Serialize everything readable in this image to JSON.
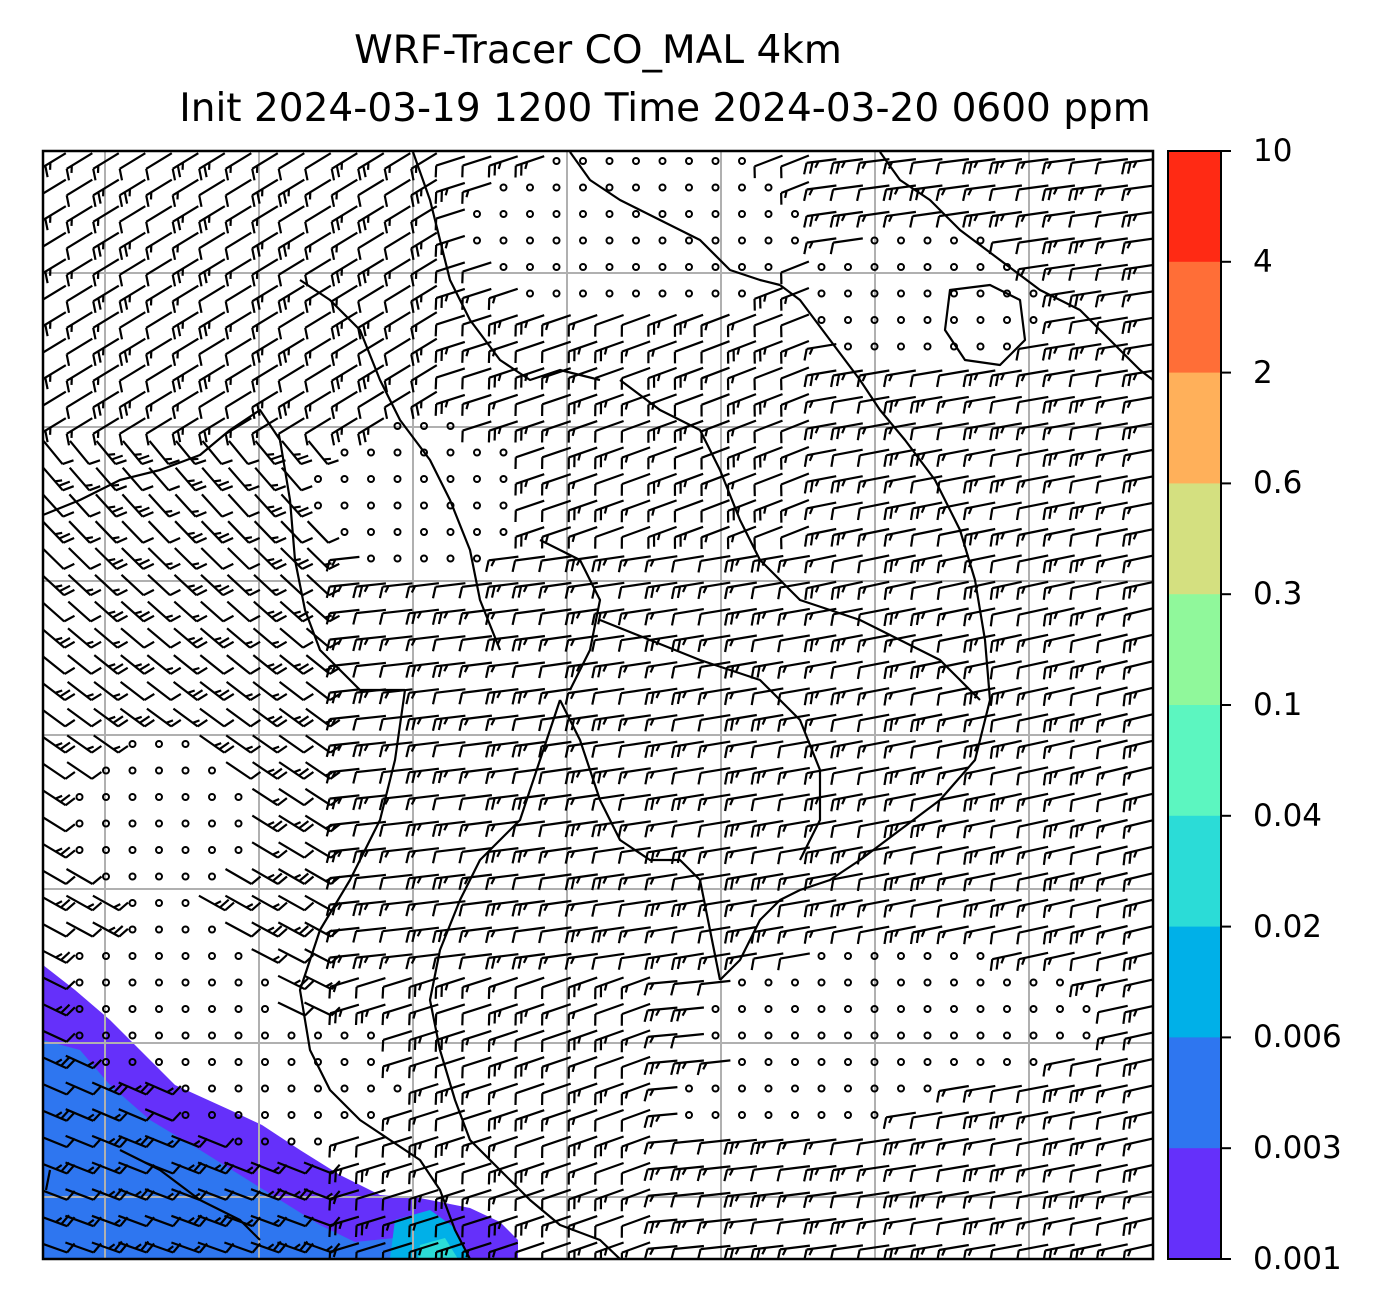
{
  "title": {
    "line1": "WRF-Tracer CO_MAL 4km",
    "line2": "Init 2024-03-19 1200 Time 2024-03-20 0600 ppm"
  },
  "colorbar": {
    "levels": [
      "10",
      "4",
      "2",
      "0.6",
      "0.3",
      "0.1",
      "0.04",
      "0.02",
      "0.006",
      "0.003",
      "0.001"
    ],
    "colors": [
      "#ff2a14",
      "#ff6e37",
      "#ffb05a",
      "#d4e080",
      "#90f89b",
      "#5cf6c0",
      "#2bdcd7",
      "#00b0e8",
      "#2e76f0",
      "#6530fa"
    ]
  },
  "map": {
    "coastline_color": "#000000",
    "gridline_color": "#b0b0b0",
    "wind_barb_color": "#000000"
  }
}
